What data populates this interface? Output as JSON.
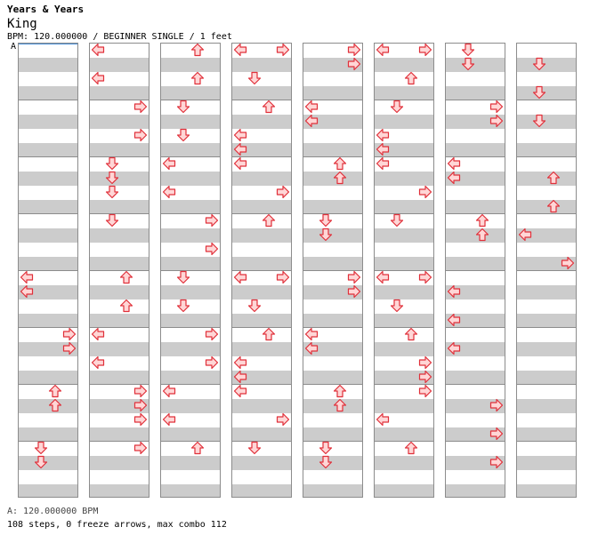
{
  "header": {
    "artist": "Years & Years",
    "title": "King",
    "info": "BPM: 120.000000 / BEGINNER SINGLE / 1 feet",
    "bpm_marker": "A"
  },
  "footer": {
    "bpm_legend": "A: 120.000000 BPM",
    "stats": "108 steps, 0 freeze arrows, max combo 112"
  },
  "chart": {
    "columns": 8,
    "measures_per_column": 8,
    "rows_per_measure": 4,
    "lanes": [
      "left",
      "down",
      "up",
      "right"
    ],
    "arrow_fill": "#ffd6d6",
    "arrow_stroke": "#e0303a"
  },
  "columns": [
    [
      {
        "beat": 16,
        "arrows": [
          "left"
        ]
      },
      {
        "beat": 17,
        "arrows": [
          "left"
        ]
      },
      {
        "beat": 20,
        "arrows": [
          "right"
        ]
      },
      {
        "beat": 21,
        "arrows": [
          "right"
        ]
      },
      {
        "beat": 24,
        "arrows": [
          "up"
        ]
      },
      {
        "beat": 25,
        "arrows": [
          "up"
        ]
      },
      {
        "beat": 28,
        "arrows": [
          "down"
        ]
      },
      {
        "beat": 29,
        "arrows": [
          "down"
        ]
      }
    ],
    [
      {
        "beat": 0,
        "arrows": [
          "left"
        ]
      },
      {
        "beat": 2,
        "arrows": [
          "left"
        ]
      },
      {
        "beat": 4,
        "arrows": [
          "right"
        ]
      },
      {
        "beat": 6,
        "arrows": [
          "right"
        ]
      },
      {
        "beat": 8,
        "arrows": [
          "down"
        ]
      },
      {
        "beat": 9,
        "arrows": [
          "down"
        ]
      },
      {
        "beat": 10,
        "arrows": [
          "down"
        ]
      },
      {
        "beat": 12,
        "arrows": [
          "down"
        ]
      },
      {
        "beat": 16,
        "arrows": [
          "up"
        ]
      },
      {
        "beat": 18,
        "arrows": [
          "up"
        ]
      },
      {
        "beat": 20,
        "arrows": [
          "left"
        ]
      },
      {
        "beat": 22,
        "arrows": [
          "left"
        ]
      },
      {
        "beat": 24,
        "arrows": [
          "right"
        ]
      },
      {
        "beat": 25,
        "arrows": [
          "right"
        ]
      },
      {
        "beat": 26,
        "arrows": [
          "right"
        ]
      },
      {
        "beat": 28,
        "arrows": [
          "right"
        ]
      }
    ],
    [
      {
        "beat": 0,
        "arrows": [
          "up"
        ]
      },
      {
        "beat": 2,
        "arrows": [
          "up"
        ]
      },
      {
        "beat": 4,
        "arrows": [
          "down"
        ]
      },
      {
        "beat": 6,
        "arrows": [
          "down"
        ]
      },
      {
        "beat": 8,
        "arrows": [
          "left"
        ]
      },
      {
        "beat": 10,
        "arrows": [
          "left"
        ]
      },
      {
        "beat": 12,
        "arrows": [
          "right"
        ]
      },
      {
        "beat": 14,
        "arrows": [
          "right"
        ]
      },
      {
        "beat": 16,
        "arrows": [
          "down"
        ]
      },
      {
        "beat": 18,
        "arrows": [
          "down"
        ]
      },
      {
        "beat": 20,
        "arrows": [
          "right"
        ]
      },
      {
        "beat": 22,
        "arrows": [
          "right"
        ]
      },
      {
        "beat": 24,
        "arrows": [
          "left"
        ]
      },
      {
        "beat": 26,
        "arrows": [
          "left"
        ]
      },
      {
        "beat": 28,
        "arrows": [
          "up"
        ]
      }
    ],
    [
      {
        "beat": 0,
        "arrows": [
          "left",
          "right"
        ]
      },
      {
        "beat": 2,
        "arrows": [
          "down"
        ]
      },
      {
        "beat": 4,
        "arrows": [
          "up"
        ]
      },
      {
        "beat": 6,
        "arrows": [
          "left"
        ]
      },
      {
        "beat": 7,
        "arrows": [
          "left"
        ]
      },
      {
        "beat": 8,
        "arrows": [
          "left"
        ]
      },
      {
        "beat": 10,
        "arrows": [
          "right"
        ]
      },
      {
        "beat": 12,
        "arrows": [
          "up"
        ]
      },
      {
        "beat": 16,
        "arrows": [
          "left",
          "right"
        ]
      },
      {
        "beat": 18,
        "arrows": [
          "down"
        ]
      },
      {
        "beat": 20,
        "arrows": [
          "up"
        ]
      },
      {
        "beat": 22,
        "arrows": [
          "left"
        ]
      },
      {
        "beat": 23,
        "arrows": [
          "left"
        ]
      },
      {
        "beat": 24,
        "arrows": [
          "left"
        ]
      },
      {
        "beat": 26,
        "arrows": [
          "right"
        ]
      },
      {
        "beat": 28,
        "arrows": [
          "down"
        ]
      }
    ],
    [
      {
        "beat": 0,
        "arrows": [
          "right"
        ]
      },
      {
        "beat": 1,
        "arrows": [
          "right"
        ]
      },
      {
        "beat": 4,
        "arrows": [
          "left"
        ]
      },
      {
        "beat": 5,
        "arrows": [
          "left"
        ]
      },
      {
        "beat": 8,
        "arrows": [
          "up"
        ]
      },
      {
        "beat": 9,
        "arrows": [
          "up"
        ]
      },
      {
        "beat": 12,
        "arrows": [
          "down"
        ]
      },
      {
        "beat": 13,
        "arrows": [
          "down"
        ]
      },
      {
        "beat": 16,
        "arrows": [
          "right"
        ]
      },
      {
        "beat": 17,
        "arrows": [
          "right"
        ]
      },
      {
        "beat": 20,
        "arrows": [
          "left"
        ]
      },
      {
        "beat": 21,
        "arrows": [
          "left"
        ]
      },
      {
        "beat": 24,
        "arrows": [
          "up"
        ]
      },
      {
        "beat": 25,
        "arrows": [
          "up"
        ]
      },
      {
        "beat": 28,
        "arrows": [
          "down"
        ]
      },
      {
        "beat": 29,
        "arrows": [
          "down"
        ]
      }
    ],
    [
      {
        "beat": 0,
        "arrows": [
          "left",
          "right"
        ]
      },
      {
        "beat": 2,
        "arrows": [
          "up"
        ]
      },
      {
        "beat": 4,
        "arrows": [
          "down"
        ]
      },
      {
        "beat": 6,
        "arrows": [
          "left"
        ]
      },
      {
        "beat": 7,
        "arrows": [
          "left"
        ]
      },
      {
        "beat": 8,
        "arrows": [
          "left"
        ]
      },
      {
        "beat": 10,
        "arrows": [
          "right"
        ]
      },
      {
        "beat": 12,
        "arrows": [
          "down"
        ]
      },
      {
        "beat": 16,
        "arrows": [
          "left",
          "right"
        ]
      },
      {
        "beat": 18,
        "arrows": [
          "down"
        ]
      },
      {
        "beat": 20,
        "arrows": [
          "up"
        ]
      },
      {
        "beat": 22,
        "arrows": [
          "right"
        ]
      },
      {
        "beat": 23,
        "arrows": [
          "right"
        ]
      },
      {
        "beat": 24,
        "arrows": [
          "right"
        ]
      },
      {
        "beat": 26,
        "arrows": [
          "left"
        ]
      },
      {
        "beat": 28,
        "arrows": [
          "up"
        ]
      }
    ],
    [
      {
        "beat": 0,
        "arrows": [
          "down"
        ]
      },
      {
        "beat": 1,
        "arrows": [
          "down"
        ]
      },
      {
        "beat": 4,
        "arrows": [
          "right"
        ]
      },
      {
        "beat": 5,
        "arrows": [
          "right"
        ]
      },
      {
        "beat": 8,
        "arrows": [
          "left"
        ]
      },
      {
        "beat": 9,
        "arrows": [
          "left"
        ]
      },
      {
        "beat": 12,
        "arrows": [
          "up"
        ]
      },
      {
        "beat": 13,
        "arrows": [
          "up"
        ]
      },
      {
        "beat": 17,
        "arrows": [
          "left"
        ]
      },
      {
        "beat": 19,
        "arrows": [
          "left"
        ]
      },
      {
        "beat": 21,
        "arrows": [
          "left"
        ]
      },
      {
        "beat": 25,
        "arrows": [
          "right"
        ]
      },
      {
        "beat": 27,
        "arrows": [
          "right"
        ]
      },
      {
        "beat": 29,
        "arrows": [
          "right"
        ]
      }
    ],
    [
      {
        "beat": 1,
        "arrows": [
          "down"
        ]
      },
      {
        "beat": 3,
        "arrows": [
          "down"
        ]
      },
      {
        "beat": 5,
        "arrows": [
          "down"
        ]
      },
      {
        "beat": 9,
        "arrows": [
          "up"
        ]
      },
      {
        "beat": 11,
        "arrows": [
          "up"
        ]
      },
      {
        "beat": 13,
        "arrows": [
          "left"
        ]
      },
      {
        "beat": 15,
        "arrows": [
          "right"
        ]
      }
    ]
  ]
}
